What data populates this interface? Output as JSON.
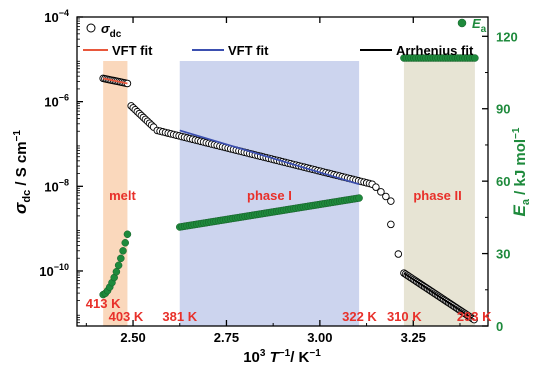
{
  "chart_data": {
    "type": "scatter",
    "x_axis": {
      "label_base": "10",
      "label_sup": "3",
      "label_var": "T",
      "label_sup2": "−1",
      "label_unit": "/ K",
      "label_unit_sup": "−1",
      "xlim": [
        2.35,
        3.45
      ],
      "ticks": [
        "2.50",
        "2.75",
        "3.00",
        "3.25"
      ],
      "tick_values": [
        2.5,
        2.75,
        3.0,
        3.25
      ]
    },
    "y_left": {
      "label_var": "σ",
      "label_sub": "dc",
      "label_unit": " / S cm",
      "label_unit_sup": "−1",
      "scale": "log",
      "ylim_log10": [
        -11.3,
        -4
      ],
      "ticks": [
        {
          "value": -10,
          "mant": "10",
          "exp": "−10"
        },
        {
          "value": -8,
          "mant": "10",
          "exp": "−8"
        },
        {
          "value": -6,
          "mant": "10",
          "exp": "−6"
        },
        {
          "value": -4,
          "mant": "10",
          "exp": "−4"
        }
      ]
    },
    "y_right": {
      "label_var": "E",
      "label_sub": "a",
      "label_unit": " / kJ mol",
      "label_unit_sup": "−1",
      "ylim": [
        0,
        128
      ],
      "ticks": [
        "0",
        "30",
        "60",
        "90",
        "120"
      ],
      "tick_values": [
        0,
        30,
        60,
        90,
        120
      ],
      "color": "#1e8a3c"
    },
    "regions": [
      {
        "label": "melt",
        "x": [
          2.42,
          2.485
        ],
        "color": "#f9d1b0"
      },
      {
        "label": "phase I",
        "x": [
          2.625,
          3.105
        ],
        "color": "#c3cdeb"
      },
      {
        "label": "phase II",
        "x": [
          3.225,
          3.415
        ],
        "color": "#e3dfcd"
      }
    ],
    "temperature_labels": [
      "413 K",
      "403 K",
      "381 K",
      "322 K",
      "310 K",
      "293 K"
    ],
    "temperature_label_x": [
      2.42,
      2.481,
      2.625,
      3.106,
      3.226,
      3.413
    ],
    "series": [
      {
        "name": "σdc",
        "marker": "open-circle",
        "color": "#000000",
        "x_range": [
          2.42,
          3.413
        ],
        "segments": [
          {
            "x": [
              2.42,
              2.485
            ],
            "log10_y": [
              -5.45,
              -5.57
            ],
            "n": 15
          },
          {
            "x": [
              2.495,
              2.555
            ],
            "log10_y": [
              -6.1,
              -6.6
            ],
            "n": 12
          },
          {
            "x": [
              2.565,
              3.14
            ],
            "log10_y": [
              -6.68,
              -7.95
            ],
            "n": 80
          },
          {
            "x": [
              3.15,
              3.19
            ],
            "log10_y": [
              -8.02,
              -8.35
            ],
            "n": 4
          },
          {
            "x": [
              3.19,
              3.21
            ],
            "log10_y": [
              -8.9,
              -9.6
            ],
            "n": 2
          },
          {
            "x": [
              3.225,
              3.413
            ],
            "log10_y": [
              -10.05,
              -11.15
            ],
            "n": 45
          }
        ]
      },
      {
        "name": "Ea",
        "marker": "filled-circle",
        "color": "#1e8a3c",
        "axis": "right",
        "segments": [
          {
            "x": [
              2.42,
              2.485
            ],
            "y": [
              13,
              38
            ],
            "n": 12
          },
          {
            "x": [
              2.625,
              3.105
            ],
            "y": [
              41,
              53
            ],
            "n": 75
          },
          {
            "x": [
              3.225,
              3.415
            ],
            "y": [
              111,
              111
            ],
            "n": 30
          }
        ]
      }
    ],
    "fits": [
      {
        "label": "VFT fit",
        "color": "#e8573b",
        "x": [
          2.42,
          2.485
        ]
      },
      {
        "label": "VFT fit",
        "color": "#3b4fb0",
        "x": [
          2.625,
          3.105
        ]
      },
      {
        "label": "Arrhenius fit",
        "color": "#000000",
        "x": [
          3.225,
          3.413
        ]
      }
    ],
    "legend": {
      "sigma_var": "σ",
      "sigma_sub": "dc",
      "ea_var": "E",
      "ea_sub": "a"
    }
  }
}
